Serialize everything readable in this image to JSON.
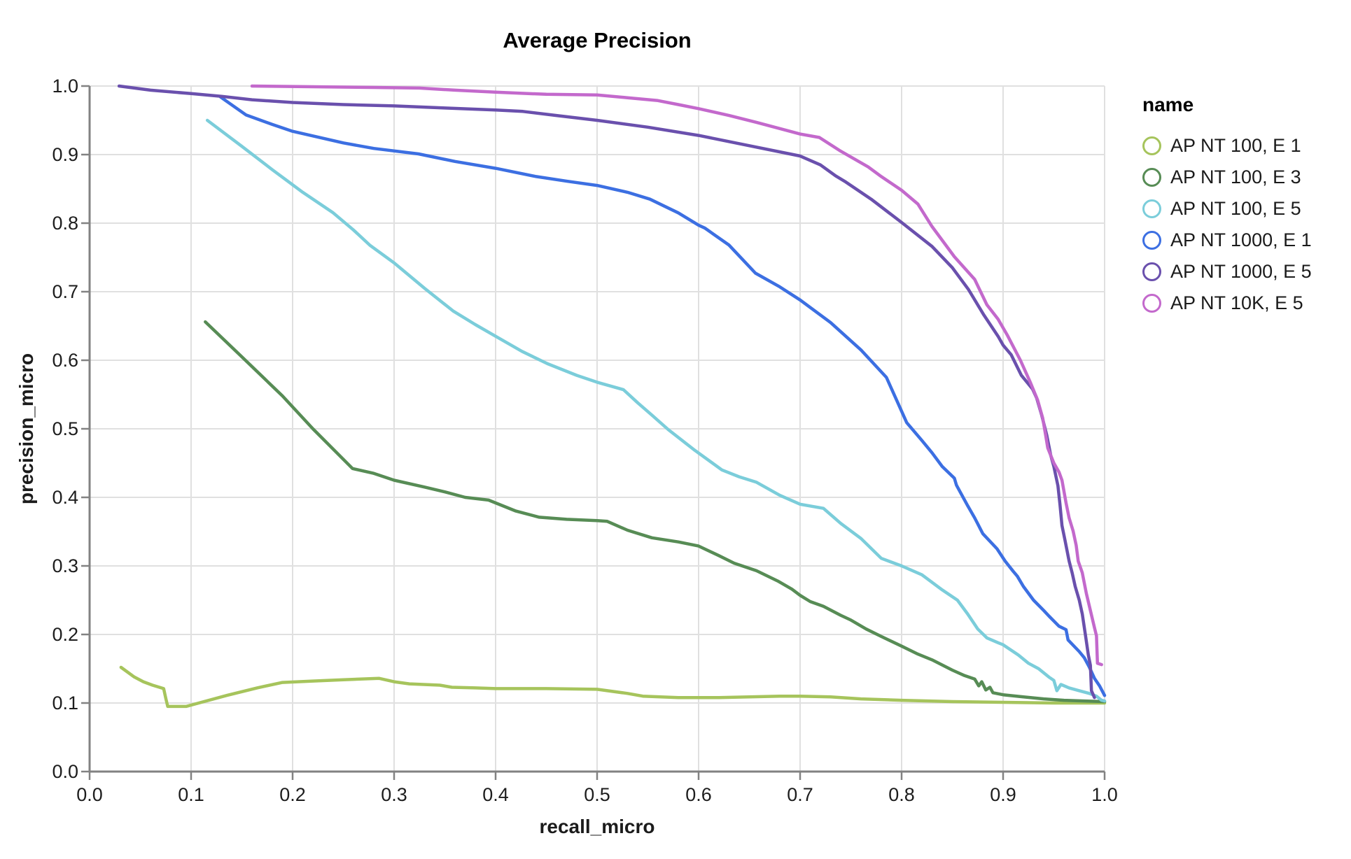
{
  "chart_data": {
    "type": "line",
    "title": "Average Precision",
    "xlabel": "recall_micro",
    "ylabel": "precision_micro",
    "legend_title": "name",
    "legend_position": "right",
    "grid": true,
    "xlim": [
      0.0,
      1.0
    ],
    "ylim": [
      0.0,
      1.0
    ],
    "xticks": [
      0,
      0.1,
      0.2,
      0.3,
      0.4,
      0.5,
      0.6,
      0.7,
      0.8,
      0.9,
      1.0
    ],
    "xtick_labels": [
      "0.0",
      "0.1",
      "0.2",
      "0.3",
      "0.4",
      "0.5",
      "0.6",
      "0.7",
      "0.8",
      "0.9",
      "1.0"
    ],
    "yticks": [
      0,
      0.1,
      0.2,
      0.3,
      0.4,
      0.5,
      0.6,
      0.7,
      0.8,
      0.9,
      1.0
    ],
    "ytick_labels": [
      "0.0",
      "0.1",
      "0.2",
      "0.3",
      "0.4",
      "0.5",
      "0.6",
      "0.7",
      "0.8",
      "0.9",
      "1.0"
    ],
    "colors": {
      "background": "#ffffff",
      "grid": "#e0e0e0",
      "axis": "#828282",
      "label": "#1d1d1d"
    },
    "series": [
      {
        "name": "AP NT 100, E 1",
        "color": "#a6c45c",
        "points": [
          [
            0.031,
            0.152
          ],
          [
            0.044,
            0.138
          ],
          [
            0.053,
            0.131
          ],
          [
            0.062,
            0.126
          ],
          [
            0.073,
            0.121
          ],
          [
            0.075,
            0.107
          ],
          [
            0.077,
            0.095
          ],
          [
            0.095,
            0.095
          ],
          [
            0.105,
            0.099
          ],
          [
            0.135,
            0.111
          ],
          [
            0.165,
            0.122
          ],
          [
            0.19,
            0.13
          ],
          [
            0.22,
            0.132
          ],
          [
            0.25,
            0.134
          ],
          [
            0.285,
            0.136
          ],
          [
            0.3,
            0.131
          ],
          [
            0.315,
            0.128
          ],
          [
            0.345,
            0.126
          ],
          [
            0.357,
            0.123
          ],
          [
            0.38,
            0.122
          ],
          [
            0.4,
            0.121
          ],
          [
            0.45,
            0.121
          ],
          [
            0.5,
            0.12
          ],
          [
            0.53,
            0.114
          ],
          [
            0.545,
            0.11
          ],
          [
            0.58,
            0.108
          ],
          [
            0.62,
            0.108
          ],
          [
            0.65,
            0.109
          ],
          [
            0.68,
            0.11
          ],
          [
            0.7,
            0.11
          ],
          [
            0.73,
            0.109
          ],
          [
            0.76,
            0.106
          ],
          [
            0.8,
            0.104
          ],
          [
            0.85,
            0.102
          ],
          [
            0.9,
            0.101
          ],
          [
            0.95,
            0.1
          ],
          [
            1.0,
            0.1
          ]
        ]
      },
      {
        "name": "AP NT 100, E 3",
        "color": "#578c55",
        "points": [
          [
            0.114,
            0.656
          ],
          [
            0.15,
            0.605
          ],
          [
            0.19,
            0.548
          ],
          [
            0.22,
            0.5
          ],
          [
            0.259,
            0.442
          ],
          [
            0.28,
            0.435
          ],
          [
            0.3,
            0.425
          ],
          [
            0.33,
            0.415
          ],
          [
            0.35,
            0.408
          ],
          [
            0.37,
            0.4
          ],
          [
            0.393,
            0.396
          ],
          [
            0.42,
            0.38
          ],
          [
            0.443,
            0.371
          ],
          [
            0.47,
            0.368
          ],
          [
            0.5,
            0.366
          ],
          [
            0.51,
            0.365
          ],
          [
            0.53,
            0.352
          ],
          [
            0.554,
            0.341
          ],
          [
            0.58,
            0.335
          ],
          [
            0.6,
            0.329
          ],
          [
            0.62,
            0.315
          ],
          [
            0.635,
            0.304
          ],
          [
            0.657,
            0.293
          ],
          [
            0.678,
            0.278
          ],
          [
            0.692,
            0.266
          ],
          [
            0.7,
            0.257
          ],
          [
            0.71,
            0.248
          ],
          [
            0.723,
            0.241
          ],
          [
            0.74,
            0.228
          ],
          [
            0.75,
            0.221
          ],
          [
            0.765,
            0.208
          ],
          [
            0.78,
            0.197
          ],
          [
            0.8,
            0.183
          ],
          [
            0.815,
            0.172
          ],
          [
            0.83,
            0.163
          ],
          [
            0.85,
            0.148
          ],
          [
            0.862,
            0.14
          ],
          [
            0.872,
            0.135
          ],
          [
            0.876,
            0.125
          ],
          [
            0.879,
            0.131
          ],
          [
            0.883,
            0.119
          ],
          [
            0.887,
            0.123
          ],
          [
            0.89,
            0.115
          ],
          [
            0.9,
            0.112
          ],
          [
            0.92,
            0.109
          ],
          [
            0.94,
            0.106
          ],
          [
            0.96,
            0.104
          ],
          [
            0.98,
            0.103
          ],
          [
            1.0,
            0.102
          ]
        ]
      },
      {
        "name": "AP NT 100, E 5",
        "color": "#7bcdda",
        "points": [
          [
            0.116,
            0.95
          ],
          [
            0.15,
            0.912
          ],
          [
            0.18,
            0.878
          ],
          [
            0.21,
            0.845
          ],
          [
            0.24,
            0.815
          ],
          [
            0.26,
            0.79
          ],
          [
            0.276,
            0.768
          ],
          [
            0.3,
            0.742
          ],
          [
            0.33,
            0.705
          ],
          [
            0.358,
            0.672
          ],
          [
            0.38,
            0.652
          ],
          [
            0.4,
            0.635
          ],
          [
            0.426,
            0.613
          ],
          [
            0.451,
            0.595
          ],
          [
            0.48,
            0.578
          ],
          [
            0.5,
            0.568
          ],
          [
            0.526,
            0.557
          ],
          [
            0.54,
            0.538
          ],
          [
            0.554,
            0.52
          ],
          [
            0.57,
            0.499
          ],
          [
            0.595,
            0.47
          ],
          [
            0.623,
            0.44
          ],
          [
            0.64,
            0.43
          ],
          [
            0.657,
            0.422
          ],
          [
            0.68,
            0.403
          ],
          [
            0.7,
            0.39
          ],
          [
            0.723,
            0.384
          ],
          [
            0.74,
            0.362
          ],
          [
            0.76,
            0.34
          ],
          [
            0.78,
            0.311
          ],
          [
            0.8,
            0.3
          ],
          [
            0.82,
            0.287
          ],
          [
            0.84,
            0.265
          ],
          [
            0.855,
            0.25
          ],
          [
            0.865,
            0.23
          ],
          [
            0.875,
            0.208
          ],
          [
            0.884,
            0.195
          ],
          [
            0.895,
            0.188
          ],
          [
            0.9,
            0.185
          ],
          [
            0.915,
            0.17
          ],
          [
            0.925,
            0.158
          ],
          [
            0.935,
            0.15
          ],
          [
            0.945,
            0.138
          ],
          [
            0.95,
            0.133
          ],
          [
            0.953,
            0.118
          ],
          [
            0.957,
            0.127
          ],
          [
            0.965,
            0.122
          ],
          [
            0.975,
            0.118
          ],
          [
            0.985,
            0.114
          ],
          [
            0.992,
            0.11
          ],
          [
            0.997,
            0.104
          ],
          [
            1.0,
            0.103
          ]
        ]
      },
      {
        "name": "AP NT 1000, E 1",
        "color": "#3c6fe2",
        "points": [
          [
            0.129,
            0.984
          ],
          [
            0.154,
            0.958
          ],
          [
            0.18,
            0.944
          ],
          [
            0.2,
            0.934
          ],
          [
            0.25,
            0.917
          ],
          [
            0.28,
            0.909
          ],
          [
            0.324,
            0.901
          ],
          [
            0.36,
            0.89
          ],
          [
            0.4,
            0.88
          ],
          [
            0.44,
            0.868
          ],
          [
            0.471,
            0.861
          ],
          [
            0.5,
            0.855
          ],
          [
            0.53,
            0.845
          ],
          [
            0.552,
            0.835
          ],
          [
            0.58,
            0.815
          ],
          [
            0.6,
            0.797
          ],
          [
            0.606,
            0.793
          ],
          [
            0.63,
            0.768
          ],
          [
            0.656,
            0.727
          ],
          [
            0.68,
            0.707
          ],
          [
            0.7,
            0.688
          ],
          [
            0.73,
            0.655
          ],
          [
            0.76,
            0.615
          ],
          [
            0.785,
            0.575
          ],
          [
            0.795,
            0.542
          ],
          [
            0.805,
            0.509
          ],
          [
            0.82,
            0.483
          ],
          [
            0.83,
            0.465
          ],
          [
            0.84,
            0.445
          ],
          [
            0.852,
            0.428
          ],
          [
            0.854,
            0.418
          ],
          [
            0.865,
            0.388
          ],
          [
            0.872,
            0.37
          ],
          [
            0.88,
            0.347
          ],
          [
            0.894,
            0.325
          ],
          [
            0.902,
            0.307
          ],
          [
            0.91,
            0.292
          ],
          [
            0.914,
            0.285
          ],
          [
            0.92,
            0.27
          ],
          [
            0.93,
            0.25
          ],
          [
            0.94,
            0.235
          ],
          [
            0.945,
            0.227
          ],
          [
            0.955,
            0.212
          ],
          [
            0.962,
            0.207
          ],
          [
            0.964,
            0.192
          ],
          [
            0.975,
            0.175
          ],
          [
            0.98,
            0.166
          ],
          [
            0.985,
            0.152
          ],
          [
            0.99,
            0.136
          ],
          [
            0.995,
            0.125
          ],
          [
            1.0,
            0.111
          ]
        ]
      },
      {
        "name": "AP NT 1000, E 5",
        "color": "#6a50ad",
        "points": [
          [
            0.029,
            1.0
          ],
          [
            0.06,
            0.994
          ],
          [
            0.1,
            0.989
          ],
          [
            0.13,
            0.985
          ],
          [
            0.16,
            0.98
          ],
          [
            0.2,
            0.976
          ],
          [
            0.25,
            0.973
          ],
          [
            0.3,
            0.971
          ],
          [
            0.35,
            0.968
          ],
          [
            0.4,
            0.965
          ],
          [
            0.427,
            0.963
          ],
          [
            0.46,
            0.957
          ],
          [
            0.5,
            0.95
          ],
          [
            0.55,
            0.94
          ],
          [
            0.6,
            0.928
          ],
          [
            0.65,
            0.913
          ],
          [
            0.7,
            0.898
          ],
          [
            0.72,
            0.885
          ],
          [
            0.735,
            0.869
          ],
          [
            0.745,
            0.86
          ],
          [
            0.77,
            0.835
          ],
          [
            0.8,
            0.801
          ],
          [
            0.83,
            0.766
          ],
          [
            0.85,
            0.735
          ],
          [
            0.866,
            0.703
          ],
          [
            0.881,
            0.666
          ],
          [
            0.895,
            0.635
          ],
          [
            0.9,
            0.622
          ],
          [
            0.908,
            0.608
          ],
          [
            0.918,
            0.578
          ],
          [
            0.929,
            0.558
          ],
          [
            0.933,
            0.545
          ],
          [
            0.938,
            0.52
          ],
          [
            0.943,
            0.491
          ],
          [
            0.947,
            0.461
          ],
          [
            0.95,
            0.445
          ],
          [
            0.954,
            0.417
          ],
          [
            0.956,
            0.39
          ],
          [
            0.958,
            0.359
          ],
          [
            0.961,
            0.337
          ],
          [
            0.965,
            0.307
          ],
          [
            0.968,
            0.29
          ],
          [
            0.971,
            0.27
          ],
          [
            0.975,
            0.25
          ],
          [
            0.978,
            0.23
          ],
          [
            0.981,
            0.2
          ],
          [
            0.984,
            0.17
          ],
          [
            0.986,
            0.155
          ],
          [
            0.987,
            0.118
          ],
          [
            0.99,
            0.108
          ]
        ]
      },
      {
        "name": "AP NT 10K, E 5",
        "color": "#c369cc",
        "points": [
          [
            0.16,
            1.0
          ],
          [
            0.22,
            0.999
          ],
          [
            0.28,
            0.998
          ],
          [
            0.325,
            0.997
          ],
          [
            0.36,
            0.994
          ],
          [
            0.4,
            0.991
          ],
          [
            0.45,
            0.988
          ],
          [
            0.5,
            0.987
          ],
          [
            0.53,
            0.983
          ],
          [
            0.559,
            0.979
          ],
          [
            0.58,
            0.973
          ],
          [
            0.6,
            0.967
          ],
          [
            0.63,
            0.957
          ],
          [
            0.657,
            0.947
          ],
          [
            0.68,
            0.938
          ],
          [
            0.7,
            0.93
          ],
          [
            0.719,
            0.925
          ],
          [
            0.74,
            0.905
          ],
          [
            0.767,
            0.882
          ],
          [
            0.78,
            0.868
          ],
          [
            0.8,
            0.848
          ],
          [
            0.816,
            0.828
          ],
          [
            0.83,
            0.795
          ],
          [
            0.852,
            0.751
          ],
          [
            0.872,
            0.718
          ],
          [
            0.884,
            0.681
          ],
          [
            0.895,
            0.66
          ],
          [
            0.904,
            0.637
          ],
          [
            0.917,
            0.6
          ],
          [
            0.927,
            0.567
          ],
          [
            0.934,
            0.542
          ],
          [
            0.939,
            0.516
          ],
          [
            0.942,
            0.49
          ],
          [
            0.944,
            0.472
          ],
          [
            0.95,
            0.45
          ],
          [
            0.955,
            0.437
          ],
          [
            0.958,
            0.425
          ],
          [
            0.962,
            0.392
          ],
          [
            0.965,
            0.37
          ],
          [
            0.969,
            0.351
          ],
          [
            0.972,
            0.33
          ],
          [
            0.974,
            0.307
          ],
          [
            0.978,
            0.29
          ],
          [
            0.982,
            0.26
          ],
          [
            0.986,
            0.235
          ],
          [
            0.99,
            0.21
          ],
          [
            0.992,
            0.198
          ],
          [
            0.993,
            0.158
          ],
          [
            0.997,
            0.156
          ]
        ]
      }
    ]
  }
}
